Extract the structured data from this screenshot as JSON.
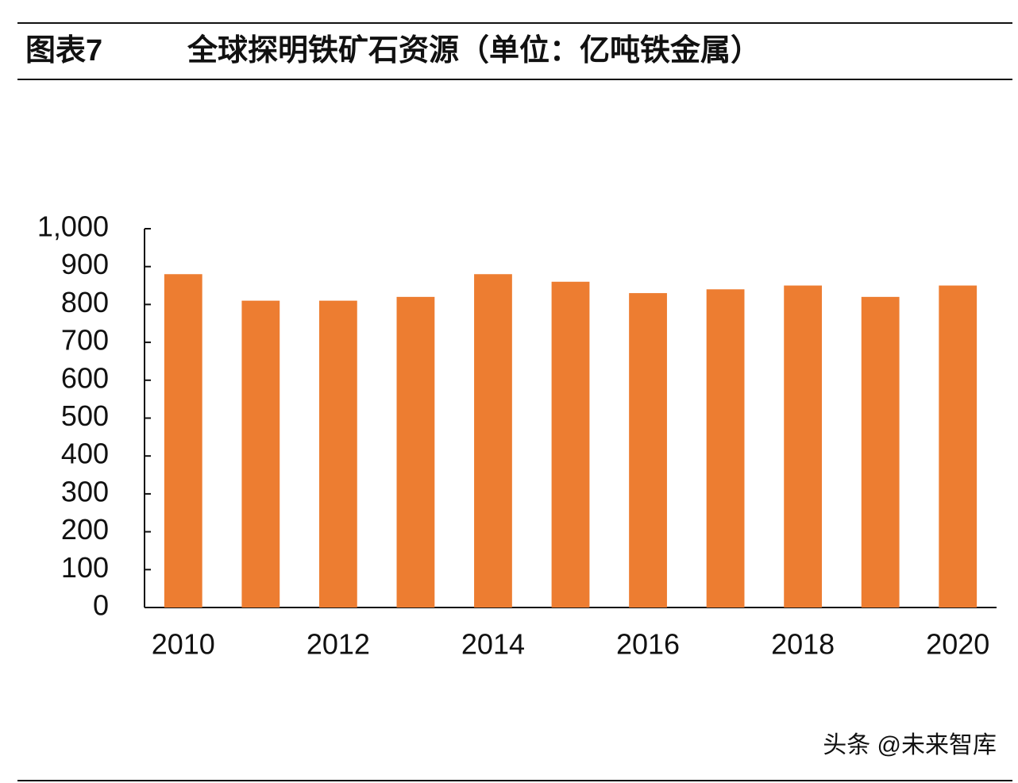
{
  "chart_data": {
    "type": "bar",
    "figure_label": "图表7",
    "title": "全球探明铁矿石资源（单位：亿吨铁金属）",
    "categories": [
      "2010",
      null,
      "2012",
      null,
      "2014",
      null,
      "2016",
      null,
      "2018",
      null,
      "2020"
    ],
    "values": [
      880,
      810,
      810,
      820,
      880,
      860,
      830,
      840,
      850,
      820,
      850
    ],
    "color": "#ed7d31",
    "ylim": [
      0,
      1000
    ],
    "yticks": [
      0,
      100,
      200,
      300,
      400,
      500,
      600,
      700,
      800,
      900,
      {
        "value": 1000,
        "label": "1,000"
      }
    ],
    "grid": false,
    "watermark": "头条 @未来智库"
  }
}
